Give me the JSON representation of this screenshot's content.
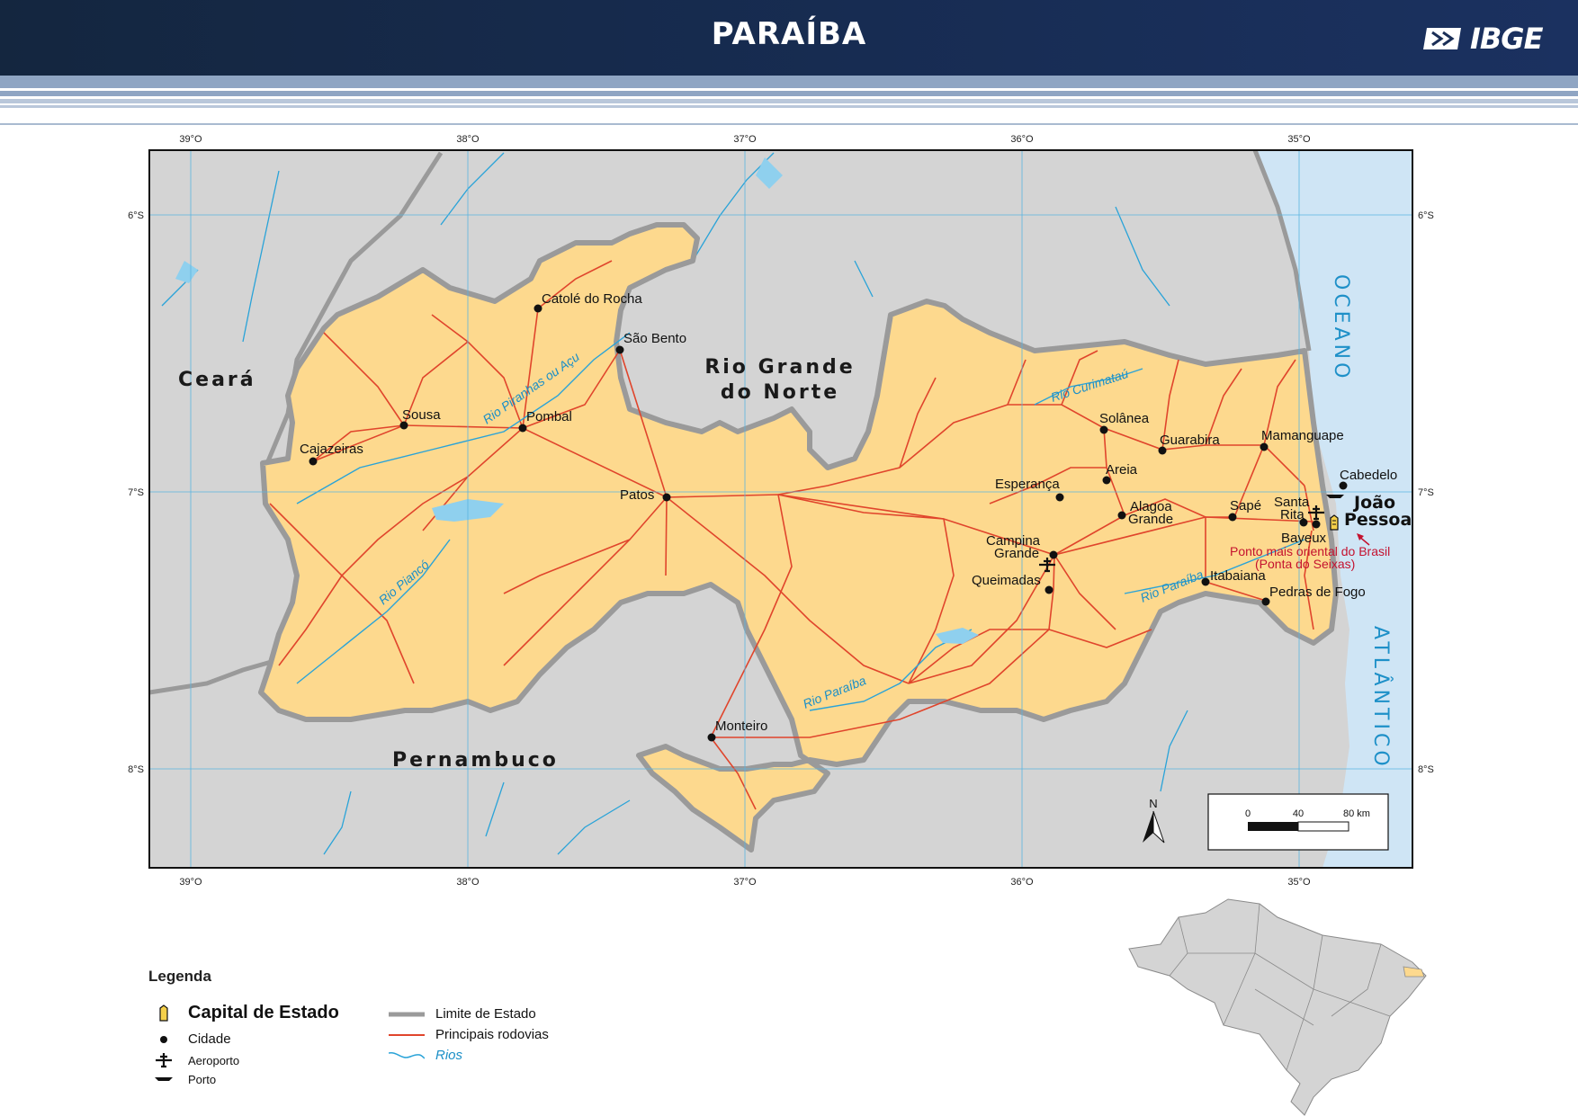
{
  "header": {
    "title": "PARAÍBA",
    "logo": "IBGE",
    "logo_icon": "ibge-logo-icon"
  },
  "map": {
    "lon_ticks": [
      "39°O",
      "38°O",
      "37°O",
      "36°O",
      "35°O"
    ],
    "lat_ticks": [
      "6°S",
      "7°S",
      "8°S"
    ],
    "states": [
      {
        "name": "Ceará"
      },
      {
        "name": "Rio Grande",
        "name2": "do Norte"
      },
      {
        "name": "Pernambuco"
      }
    ],
    "ocean": {
      "line1": "OCEANO",
      "line2": "ATLÂNTICO"
    },
    "capital": {
      "line1": "João",
      "line2": "Pessoa"
    },
    "cities": [
      {
        "name": "Catolé do Rocha"
      },
      {
        "name": "São Bento"
      },
      {
        "name": "Sousa"
      },
      {
        "name": "Pombal"
      },
      {
        "name": "Cajazeiras"
      },
      {
        "name": "Patos"
      },
      {
        "name": "Solânea"
      },
      {
        "name": "Guarabira"
      },
      {
        "name": "Mamanguape"
      },
      {
        "name": "Cabedelo"
      },
      {
        "name": "Areia"
      },
      {
        "name": "Esperança"
      },
      {
        "name": "Alagoa",
        "name2": "Grande"
      },
      {
        "name": "Sapé"
      },
      {
        "name": "Santa",
        "name2": "Rita"
      },
      {
        "name": "Bayeux"
      },
      {
        "name": "Campina",
        "name2": "Grande"
      },
      {
        "name": "Queimadas"
      },
      {
        "name": "Itabaiana"
      },
      {
        "name": "Pedras de Fogo"
      },
      {
        "name": "Monteiro"
      }
    ],
    "rivers": [
      "Rio Piranhas ou Açu",
      "Rio Curimataú",
      "Rio Piancó",
      "Rio Paraíba",
      "Rio Paraíba"
    ],
    "annotation": {
      "line1": "Ponto mais oriental do Brasil",
      "line2": "(Ponta do Seixas)"
    },
    "north_label": "N",
    "scale": {
      "labels": [
        "0",
        "40",
        "80 km"
      ]
    },
    "colors": {
      "paraiba": "#fdd98e",
      "neighbors": "#d4d4d4",
      "ocean": "#cfe5f5",
      "roads": "#e0452c",
      "rivers": "#29a3d8",
      "border": "#9a9a9a",
      "grid": "#5ab4e0"
    }
  },
  "legend": {
    "title": "Legenda",
    "items": [
      {
        "label": "Capital de Estado",
        "icon": "capital-icon"
      },
      {
        "label": "Cidade",
        "icon": "city-dot-icon"
      },
      {
        "label": "Aeroporto",
        "icon": "airplane-icon"
      },
      {
        "label": "Porto",
        "icon": "ship-icon"
      },
      {
        "label": "Limite de Estado",
        "icon": "state-border-line"
      },
      {
        "label": "Principais rodovias",
        "icon": "road-line"
      },
      {
        "label": "Rios",
        "icon": "river-line"
      }
    ]
  }
}
